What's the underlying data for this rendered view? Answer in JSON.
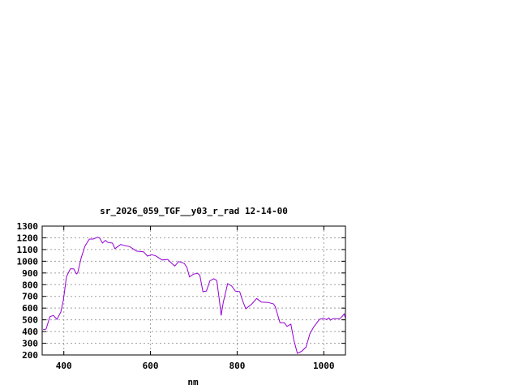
{
  "chart_data": {
    "type": "line",
    "title": "sr_2026_059_TGF__y03_r_rad 12-14-00",
    "xlabel": "nm",
    "ylabel": "",
    "xlim": [
      350,
      1050
    ],
    "ylim": [
      200,
      1300
    ],
    "xticks": [
      400,
      600,
      800,
      1000
    ],
    "yticks": [
      200,
      300,
      400,
      500,
      600,
      700,
      800,
      900,
      1000,
      1100,
      1200,
      1300
    ],
    "grid": true,
    "line_color": "#9400d3",
    "x": [
      352,
      359,
      368,
      376,
      384,
      393,
      399,
      406,
      415,
      423,
      429,
      432,
      440,
      449,
      459,
      468,
      478,
      483,
      489,
      496,
      502,
      512,
      518,
      531,
      543,
      552,
      568,
      584,
      593,
      603,
      612,
      627,
      640,
      649,
      656,
      665,
      678,
      684,
      690,
      699,
      709,
      714,
      721,
      729,
      737,
      746,
      753,
      759,
      763,
      768,
      778,
      787,
      796,
      806,
      812,
      820,
      834,
      845,
      856,
      871,
      884,
      888,
      899,
      909,
      915,
      924,
      931,
      939,
      949,
      959,
      968,
      977,
      990,
      999,
      1006,
      1012,
      1015,
      1021,
      1037,
      1043,
      1047,
      1050
    ],
    "y": [
      417,
      421,
      527,
      537,
      504,
      567,
      670,
      866,
      935,
      935,
      892,
      901,
      1028,
      1132,
      1189,
      1189,
      1205,
      1196,
      1155,
      1178,
      1160,
      1155,
      1108,
      1143,
      1132,
      1125,
      1086,
      1081,
      1044,
      1056,
      1046,
      1011,
      1016,
      982,
      959,
      998,
      982,
      947,
      866,
      890,
      897,
      878,
      740,
      745,
      832,
      850,
      836,
      670,
      537,
      648,
      809,
      790,
      745,
      740,
      670,
      594,
      636,
      682,
      652,
      648,
      636,
      613,
      475,
      475,
      444,
      463,
      325,
      214,
      232,
      267,
      382,
      440,
      504,
      514,
      502,
      516,
      497,
      509,
      509,
      532,
      551,
      514
    ]
  }
}
